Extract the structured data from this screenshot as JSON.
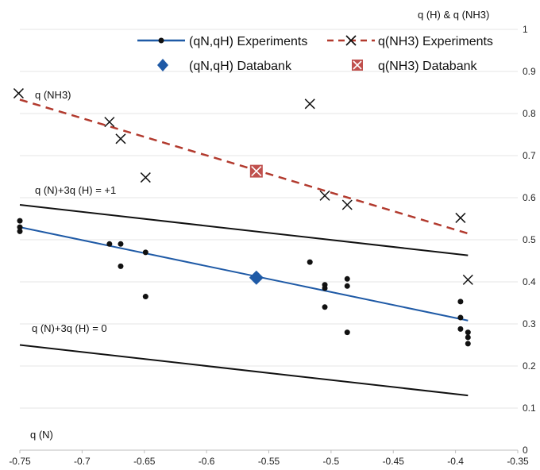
{
  "chart_data": {
    "type": "scatter",
    "title": "",
    "xlabel": "q(N)",
    "ylabel": "q(H) & q(NH3)",
    "xlim": [
      -0.75,
      -0.35
    ],
    "ylim": [
      0,
      1
    ],
    "xticks": [
      -0.75,
      -0.7,
      -0.65,
      -0.6,
      -0.55,
      -0.5,
      -0.45,
      -0.4,
      -0.35
    ],
    "xtick_labels": [
      "-0.75",
      "-0.7",
      "-0.65",
      "-0.6",
      "-0.55",
      "-0.5",
      "-0.45",
      "-0.4",
      "-0.35"
    ],
    "yticks": [
      0,
      0.1,
      0.2,
      0.3,
      0.4,
      0.5,
      0.6,
      0.7,
      0.8,
      0.9,
      1
    ],
    "ytick_labels": [
      "0",
      "0.1",
      "0.2",
      "0.3",
      "0.4",
      "0.5",
      "0.6",
      "0.7",
      "0.8",
      "0.9",
      "1"
    ],
    "grid": "horizontal",
    "legend_placement": "top-right",
    "colors": {
      "qH_trend": "#1f5aa6",
      "qNH3_trend": "#b23a2e",
      "constraint": "#111111",
      "points": "#111111",
      "databank_qH": "#1f5aa6",
      "databank_qNH3": "#c0504d",
      "grid": "#e4e4e4"
    },
    "series": [
      {
        "name": "(qN,qH) Experiments",
        "marker": "dot",
        "points": [
          [
            -0.75,
            0.545
          ],
          [
            -0.75,
            0.53
          ],
          [
            -0.75,
            0.52
          ],
          [
            -0.678,
            0.49
          ],
          [
            -0.669,
            0.49
          ],
          [
            -0.669,
            0.437
          ],
          [
            -0.649,
            0.47
          ],
          [
            -0.649,
            0.365
          ],
          [
            -0.517,
            0.447
          ],
          [
            -0.505,
            0.393
          ],
          [
            -0.505,
            0.385
          ],
          [
            -0.505,
            0.34
          ],
          [
            -0.487,
            0.407
          ],
          [
            -0.487,
            0.39
          ],
          [
            -0.487,
            0.28
          ],
          [
            -0.396,
            0.353
          ],
          [
            -0.396,
            0.315
          ],
          [
            -0.396,
            0.288
          ],
          [
            -0.39,
            0.28
          ],
          [
            -0.39,
            0.268
          ],
          [
            -0.39,
            0.253
          ]
        ],
        "trend": [
          [
            -0.75,
            0.53
          ],
          [
            -0.39,
            0.308
          ]
        ]
      },
      {
        "name": "q(NH3) Experiments",
        "marker": "x",
        "points": [
          [
            -0.751,
            0.848
          ],
          [
            -0.678,
            0.78
          ],
          [
            -0.669,
            0.74
          ],
          [
            -0.649,
            0.648
          ],
          [
            -0.517,
            0.823
          ],
          [
            -0.505,
            0.605
          ],
          [
            -0.487,
            0.583
          ],
          [
            -0.396,
            0.552
          ],
          [
            -0.39,
            0.405
          ]
        ],
        "trend": [
          [
            -0.75,
            0.833
          ],
          [
            -0.39,
            0.515
          ]
        ]
      },
      {
        "name": "(qN,qH) Databank",
        "marker": "diamond",
        "points": [
          [
            -0.56,
            0.41
          ]
        ]
      },
      {
        "name": "q(NH3) Databank",
        "marker": "boxed-x",
        "points": [
          [
            -0.56,
            0.663
          ]
        ]
      }
    ],
    "constraint_lines": [
      {
        "label": "q(N)+3q(H) = +1",
        "points": [
          [
            -0.75,
            0.583
          ],
          [
            -0.39,
            0.463
          ]
        ]
      },
      {
        "label": "q(N)+3q(H) = 0",
        "points": [
          [
            -0.75,
            0.25
          ],
          [
            -0.39,
            0.13
          ]
        ]
      }
    ],
    "annotations": {
      "nh3_label": "q(NH3)"
    }
  },
  "labels": {
    "top_axis_label": "q (H)  & q (NH3)",
    "bottom_left_label": "q (N)",
    "nh3_inline_label": "q (NH3)",
    "constraint_plus_one": "q (N)+3q (H) = +1",
    "constraint_zero": "q (N)+3q (H) = 0"
  },
  "legend": {
    "items": [
      {
        "label": "(qN,qH) Experiments"
      },
      {
        "label": "q(NH3) Experiments"
      },
      {
        "label": "(qN,qH) Databank"
      },
      {
        "label": "q(NH3) Databank"
      }
    ]
  }
}
